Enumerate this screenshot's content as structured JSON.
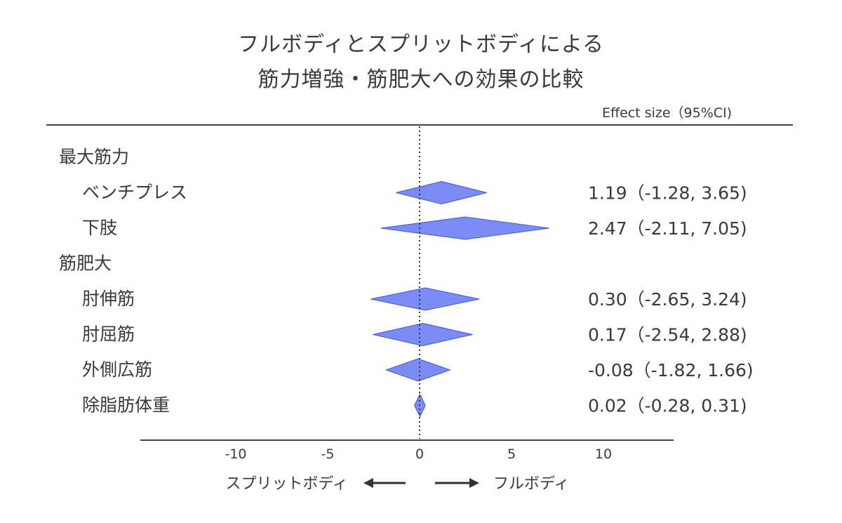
{
  "title_line1": "フルボディとスプリットボディによる",
  "title_line2": "筋力増強・筋肥大への効果の比較",
  "chart_data": {
    "type": "forest",
    "effect_header": "Effect size（95%CI)",
    "xlim": [
      -15,
      14
    ],
    "xticks": [
      -10,
      -5,
      0,
      5,
      10
    ],
    "xtick_labels": [
      "-10",
      "-5",
      "0",
      "5",
      "10"
    ],
    "reference_line": 0,
    "groups": [
      {
        "name": "最大筋力",
        "rows": [
          {
            "label": "ベンチプレス",
            "estimate": 1.19,
            "lower": -1.28,
            "upper": 3.65,
            "ci_text": "1.19（-1.28, 3.65)"
          },
          {
            "label": "下肢",
            "estimate": 2.47,
            "lower": -2.11,
            "upper": 7.05,
            "ci_text": "2.47（-2.11, 7.05)"
          }
        ]
      },
      {
        "name": "筋肥大",
        "rows": [
          {
            "label": "肘伸筋",
            "estimate": 0.3,
            "lower": -2.65,
            "upper": 3.24,
            "ci_text": "0.30（-2.65, 3.24)"
          },
          {
            "label": "肘屈筋",
            "estimate": 0.17,
            "lower": -2.54,
            "upper": 2.88,
            "ci_text": "0.17（-2.54, 2.88)"
          },
          {
            "label": "外側広筋",
            "estimate": -0.08,
            "lower": -1.82,
            "upper": 1.66,
            "ci_text": "-0.08（-1.82, 1.66)"
          },
          {
            "label": "除脂肪体重",
            "estimate": 0.02,
            "lower": -0.28,
            "upper": 0.31,
            "ci_text": "0.02（-0.28, 0.31)"
          }
        ]
      }
    ],
    "direction_left": "スプリットボディ",
    "direction_right": "フルボディ",
    "colors": {
      "diamond_fill": "#7b8cf7",
      "diamond_stroke": "#3f55ee",
      "text": "#3a3a3a",
      "axis": "#444444"
    }
  }
}
